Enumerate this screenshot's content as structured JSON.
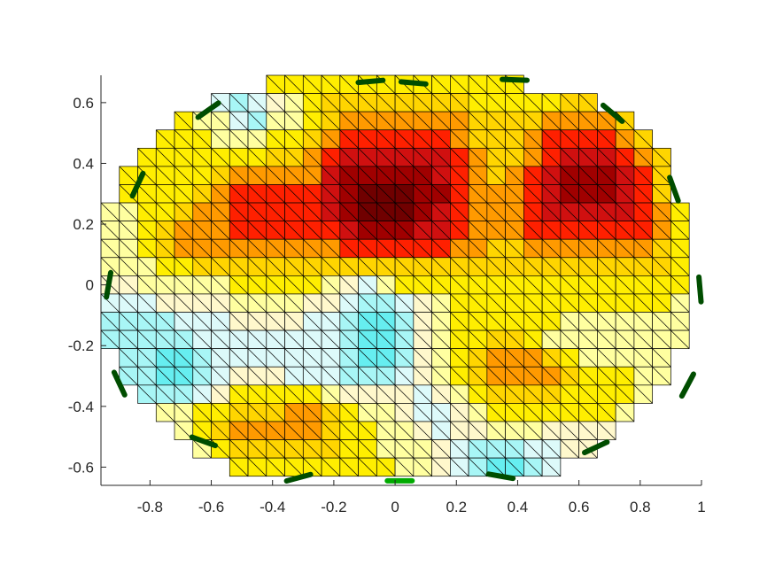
{
  "chart_data": {
    "type": "heatmap",
    "title": "",
    "xlabel": "",
    "ylabel": "",
    "xlim": [
      -0.96,
      1.0
    ],
    "ylim": [
      -0.66,
      0.69
    ],
    "xticks": [
      -0.8,
      -0.6,
      -0.4,
      -0.2,
      0,
      0.2,
      0.4,
      0.6,
      0.8,
      1
    ],
    "xtick_labels": [
      "-0.8",
      "-0.6",
      "-0.4",
      "-0.2",
      "0",
      "0.2",
      "0.4",
      "0.6",
      "0.8",
      "1"
    ],
    "yticks": [
      0.6,
      0.4,
      0.2,
      0,
      -0.2,
      -0.4,
      -0.6
    ],
    "ytick_labels": [
      "0.6",
      "0.4",
      "0.2",
      "0",
      "-0.2",
      "-0.4",
      "-0.6"
    ],
    "mesh": {
      "cell_size": 0.06,
      "x_start": -0.96,
      "y_start": 0.69,
      "columns": 32,
      "rows": 22,
      "row_extents": [
        [
          9,
          23
        ],
        [
          6,
          27
        ],
        [
          4,
          29
        ],
        [
          3,
          30
        ],
        [
          2,
          31
        ],
        [
          1,
          31
        ],
        [
          1,
          31
        ],
        [
          0,
          32
        ],
        [
          0,
          32
        ],
        [
          0,
          32
        ],
        [
          0,
          32
        ],
        [
          0,
          32
        ],
        [
          0,
          32
        ],
        [
          0,
          32
        ],
        [
          0,
          32
        ],
        [
          1,
          31
        ],
        [
          1,
          31
        ],
        [
          2,
          30
        ],
        [
          3,
          29
        ],
        [
          4,
          28
        ],
        [
          5,
          27
        ],
        [
          7,
          25
        ]
      ]
    },
    "colormap": {
      "-3": "#66eef0",
      "-2": "#a8f6f6",
      "-1": "#ddfafa",
      "0": "#fff8cc",
      "1": "#ffffa0",
      "2": "#ffee00",
      "3": "#ffd500",
      "4": "#ff9a00",
      "5": "#ff6600",
      "6": "#ff2000",
      "7": "#d01010",
      "8": "#a00000",
      "9": "#700000"
    },
    "levels": [
      [
        1,
        1,
        -1,
        0,
        0,
        2,
        2,
        2,
        2,
        2,
        2,
        2,
        2,
        2,
        2,
        2,
        2,
        2,
        2,
        2,
        2,
        2,
        2,
        2,
        2,
        2,
        2,
        2,
        2,
        2,
        2,
        2
      ],
      [
        1,
        1,
        1,
        1,
        1,
        1,
        -1,
        -2,
        -1,
        0,
        1,
        2,
        3,
        3,
        3,
        3,
        3,
        3,
        3,
        3,
        2,
        2,
        2,
        2,
        2,
        3,
        3,
        2,
        2,
        2,
        2,
        1
      ],
      [
        2,
        2,
        2,
        2,
        2,
        1,
        1,
        -1,
        -2,
        1,
        1,
        2,
        3,
        4,
        4,
        4,
        4,
        4,
        4,
        4,
        3,
        3,
        3,
        3,
        4,
        4,
        4,
        4,
        3,
        2,
        2,
        2
      ],
      [
        2,
        2,
        2,
        2,
        2,
        2,
        1,
        1,
        1,
        2,
        2,
        3,
        4,
        6,
        6,
        6,
        6,
        6,
        6,
        4,
        3,
        3,
        3,
        4,
        6,
        6,
        6,
        6,
        4,
        3,
        2,
        2
      ],
      [
        2,
        2,
        2,
        2,
        2,
        2,
        2,
        2,
        2,
        3,
        3,
        4,
        6,
        7,
        7,
        7,
        7,
        7,
        7,
        6,
        4,
        3,
        3,
        4,
        6,
        7,
        7,
        7,
        6,
        4,
        3,
        2
      ],
      [
        2,
        2,
        2,
        2,
        2,
        2,
        3,
        4,
        4,
        4,
        4,
        4,
        7,
        8,
        8,
        8,
        8,
        8,
        7,
        6,
        4,
        3,
        4,
        6,
        7,
        8,
        8,
        8,
        7,
        6,
        3,
        2
      ],
      [
        2,
        2,
        2,
        2,
        2,
        3,
        4,
        6,
        6,
        6,
        6,
        6,
        7,
        8,
        9,
        9,
        9,
        8,
        8,
        6,
        4,
        4,
        4,
        6,
        7,
        8,
        8,
        8,
        7,
        6,
        3,
        2
      ],
      [
        1,
        1,
        2,
        2,
        3,
        4,
        4,
        6,
        6,
        6,
        6,
        6,
        7,
        8,
        9,
        9,
        9,
        8,
        7,
        6,
        4,
        4,
        4,
        6,
        7,
        7,
        7,
        7,
        7,
        6,
        4,
        2
      ],
      [
        1,
        1,
        2,
        3,
        4,
        4,
        4,
        6,
        6,
        6,
        6,
        6,
        6,
        7,
        8,
        8,
        8,
        7,
        7,
        6,
        4,
        4,
        4,
        6,
        6,
        6,
        6,
        6,
        6,
        6,
        4,
        2
      ],
      [
        1,
        1,
        2,
        3,
        4,
        4,
        4,
        4,
        4,
        4,
        4,
        4,
        4,
        6,
        6,
        6,
        6,
        6,
        6,
        4,
        4,
        3,
        3,
        4,
        4,
        4,
        4,
        4,
        4,
        4,
        3,
        2
      ],
      [
        1,
        1,
        1,
        2,
        2,
        3,
        3,
        3,
        3,
        3,
        3,
        3,
        3,
        3,
        3,
        3,
        3,
        3,
        3,
        3,
        3,
        3,
        3,
        3,
        3,
        3,
        3,
        3,
        3,
        3,
        3,
        2
      ],
      [
        0,
        0,
        1,
        1,
        1,
        1,
        1,
        2,
        2,
        2,
        2,
        2,
        1,
        0,
        -1,
        1,
        2,
        2,
        2,
        2,
        2,
        2,
        2,
        2,
        2,
        2,
        2,
        2,
        2,
        2,
        2,
        2
      ],
      [
        -1,
        -1,
        -1,
        0,
        0,
        0,
        0,
        1,
        1,
        1,
        1,
        0,
        0,
        -1,
        -2,
        -2,
        -1,
        0,
        1,
        2,
        2,
        2,
        2,
        2,
        2,
        2,
        2,
        2,
        2,
        2,
        2,
        1
      ],
      [
        -2,
        -2,
        -2,
        -2,
        -1,
        -1,
        -1,
        0,
        0,
        0,
        0,
        -1,
        -1,
        -2,
        -3,
        -3,
        -2,
        0,
        1,
        2,
        2,
        2,
        2,
        2,
        2,
        1,
        1,
        1,
        1,
        1,
        1,
        1
      ],
      [
        -2,
        -2,
        -2,
        -2,
        -2,
        -1,
        -1,
        -1,
        -1,
        -1,
        -1,
        -1,
        -1,
        -2,
        -3,
        -3,
        -2,
        0,
        1,
        2,
        2,
        3,
        3,
        2,
        1,
        1,
        1,
        1,
        1,
        1,
        1,
        1
      ],
      [
        -2,
        -2,
        -2,
        -3,
        -3,
        -2,
        -1,
        -1,
        -1,
        -1,
        -1,
        -1,
        -1,
        -2,
        -3,
        -3,
        -2,
        0,
        1,
        2,
        3,
        4,
        4,
        4,
        3,
        2,
        1,
        1,
        1,
        1,
        1,
        1
      ],
      [
        -1,
        -2,
        -2,
        -3,
        -3,
        -2,
        -1,
        0,
        0,
        0,
        -1,
        -1,
        -1,
        -2,
        -2,
        -2,
        -1,
        0,
        1,
        2,
        3,
        4,
        4,
        4,
        4,
        3,
        2,
        2,
        2,
        1,
        1,
        1
      ],
      [
        -1,
        -1,
        -2,
        -2,
        -2,
        -1,
        0,
        2,
        2,
        2,
        2,
        2,
        1,
        0,
        0,
        0,
        0,
        -1,
        0,
        1,
        2,
        3,
        3,
        3,
        3,
        2,
        2,
        2,
        2,
        1,
        1,
        1
      ],
      [
        0,
        0,
        1,
        1,
        1,
        2,
        2,
        3,
        3,
        3,
        4,
        4,
        3,
        2,
        1,
        1,
        0,
        -1,
        -1,
        0,
        1,
        2,
        2,
        2,
        2,
        2,
        2,
        2,
        1,
        1,
        1,
        1
      ],
      [
        0,
        0,
        1,
        1,
        1,
        2,
        3,
        4,
        4,
        4,
        4,
        4,
        3,
        2,
        2,
        1,
        1,
        0,
        -1,
        0,
        0,
        1,
        1,
        1,
        0,
        0,
        0,
        0,
        0,
        0,
        0,
        0
      ],
      [
        0,
        0,
        1,
        1,
        1,
        1,
        2,
        3,
        3,
        3,
        3,
        3,
        3,
        2,
        2,
        1,
        1,
        1,
        0,
        -1,
        -2,
        -2,
        -2,
        -1,
        -1,
        0,
        0,
        0,
        0,
        0,
        0,
        0
      ],
      [
        0,
        0,
        0,
        0,
        0,
        0,
        0,
        2,
        2,
        2,
        2,
        2,
        2,
        2,
        2,
        2,
        1,
        1,
        0,
        -1,
        -2,
        -3,
        -3,
        -2,
        -1,
        -1,
        0,
        0,
        0,
        0,
        0,
        0
      ]
    ],
    "electrodes": [
      {
        "x": -0.08,
        "y": 0.67,
        "angle": -5,
        "color": "#004d00"
      },
      {
        "x": 0.06,
        "y": 0.665,
        "angle": 5,
        "color": "#004d00"
      },
      {
        "x": 0.39,
        "y": 0.675,
        "angle": 2,
        "color": "#004d00"
      },
      {
        "x": -0.61,
        "y": 0.575,
        "angle": -35,
        "color": "#004d00"
      },
      {
        "x": 0.71,
        "y": 0.565,
        "angle": 40,
        "color": "#004d00"
      },
      {
        "x": -0.84,
        "y": 0.33,
        "angle": -65,
        "color": "#004d00"
      },
      {
        "x": 0.91,
        "y": 0.315,
        "angle": 70,
        "color": "#004d00"
      },
      {
        "x": -0.935,
        "y": 0.0,
        "angle": -80,
        "color": "#004d00"
      },
      {
        "x": 0.995,
        "y": -0.015,
        "angle": 85,
        "color": "#004d00"
      },
      {
        "x": -0.9,
        "y": -0.325,
        "angle": -115,
        "color": "#004d00"
      },
      {
        "x": 0.955,
        "y": -0.33,
        "angle": 118,
        "color": "#004d00"
      },
      {
        "x": -0.625,
        "y": -0.515,
        "angle": -160,
        "color": "#004d00"
      },
      {
        "x": 0.655,
        "y": -0.535,
        "angle": 155,
        "color": "#004d00"
      },
      {
        "x": -0.315,
        "y": -0.635,
        "angle": 165,
        "color": "#004d00"
      },
      {
        "x": 0.015,
        "y": -0.645,
        "angle": 180,
        "color": "#00aa00"
      },
      {
        "x": 0.345,
        "y": -0.63,
        "angle": -170,
        "color": "#004d00"
      }
    ]
  }
}
